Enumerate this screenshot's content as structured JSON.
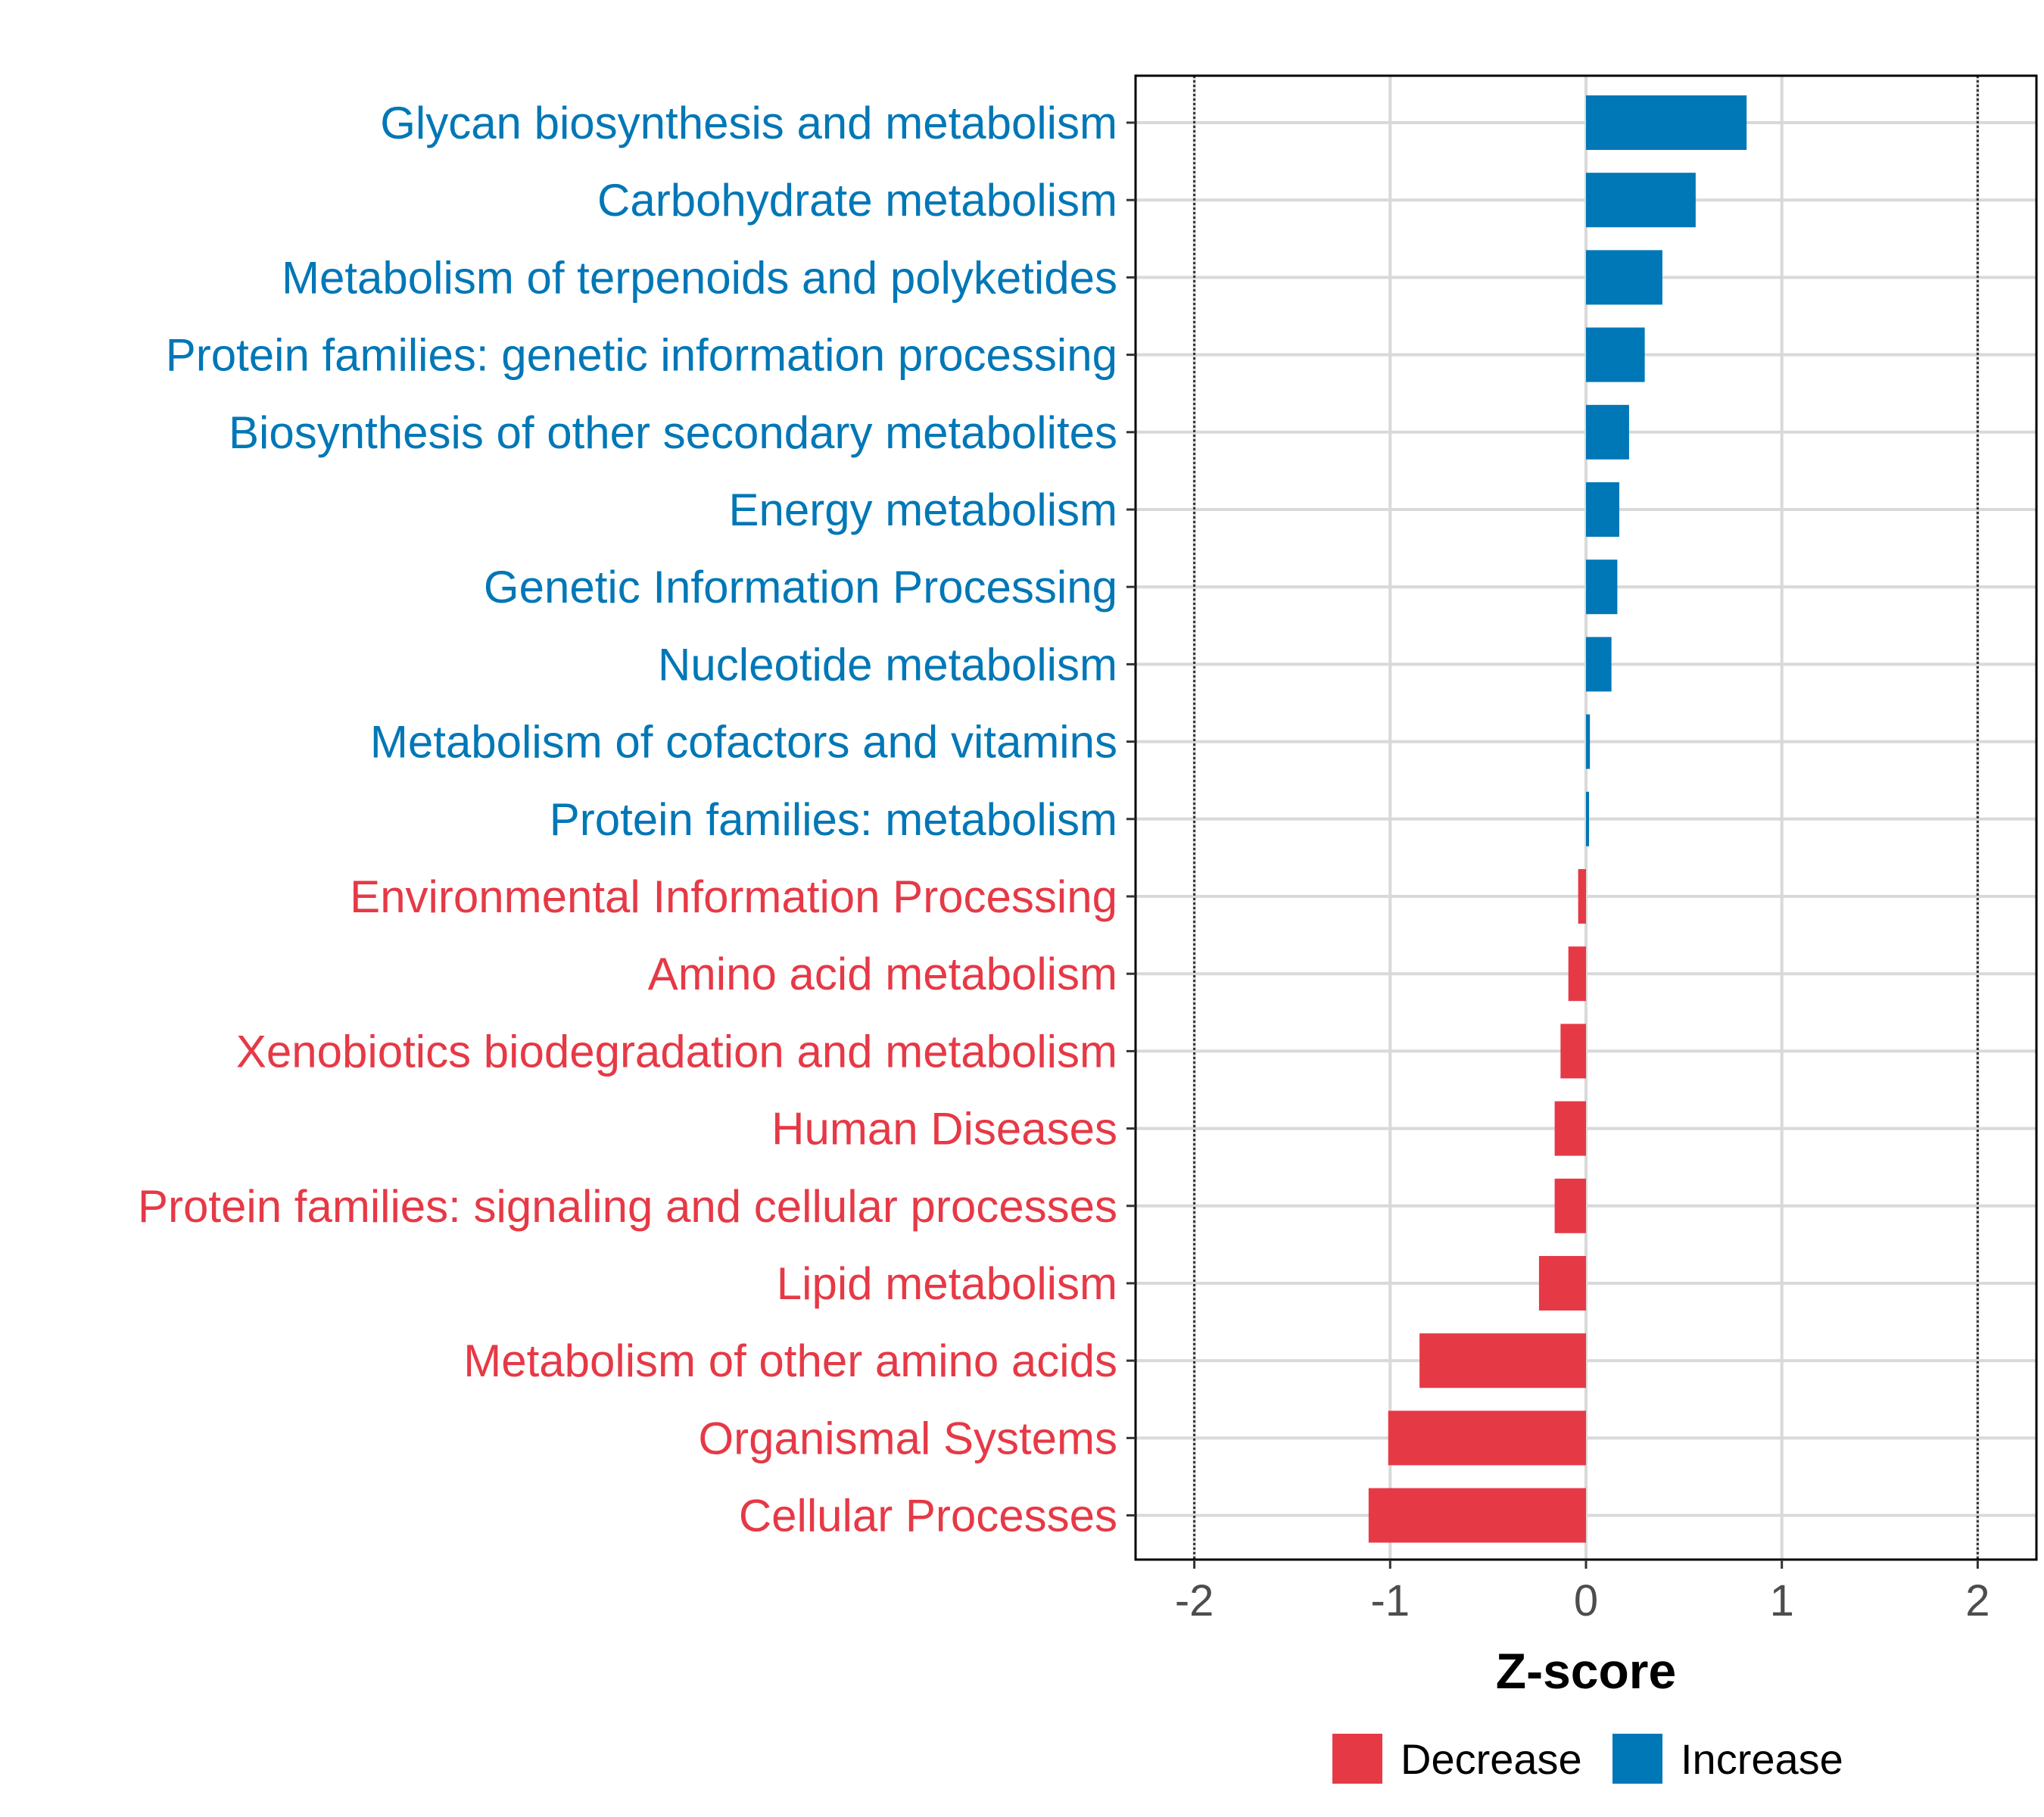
{
  "colors": {
    "increase": "#0077B6",
    "decrease": "#E63946",
    "grid": "#D9D9D9",
    "axis": "#000000"
  },
  "chart_data": {
    "type": "bar",
    "orientation": "horizontal",
    "categories": [
      "Glycan biosynthesis and metabolism",
      "Carbohydrate metabolism",
      "Metabolism of terpenoids and polyketides",
      "Protein families: genetic information processing",
      "Biosynthesis of other secondary metabolites",
      "Energy metabolism",
      "Genetic Information Processing",
      "Nucleotide metabolism",
      "Metabolism of cofactors and vitamins",
      "Protein families: metabolism",
      "Environmental Information Processing",
      "Amino acid metabolism",
      "Xenobiotics biodegradation and metabolism",
      "Human Diseases",
      "Protein families: signaling and cellular processes",
      "Lipid metabolism",
      "Metabolism of other amino acids",
      "Organismal Systems",
      "Cellular Processes"
    ],
    "values": [
      0.82,
      0.56,
      0.39,
      0.3,
      0.22,
      0.17,
      0.16,
      0.13,
      0.02,
      0.01,
      -0.04,
      -0.09,
      -0.13,
      -0.16,
      -0.16,
      -0.24,
      -0.85,
      -1.01,
      -1.11
    ],
    "groups": [
      "Increase",
      "Increase",
      "Increase",
      "Increase",
      "Increase",
      "Increase",
      "Increase",
      "Increase",
      "Increase",
      "Increase",
      "Decrease",
      "Decrease",
      "Decrease",
      "Decrease",
      "Decrease",
      "Decrease",
      "Decrease",
      "Decrease",
      "Decrease"
    ],
    "xlabel": "Z-score",
    "ylabel": "",
    "xlim": [
      -2.3,
      2.3
    ],
    "xticks": [
      -2,
      -1,
      0,
      1,
      2
    ],
    "xtick_labels": [
      "-2",
      "-1",
      "0",
      "1",
      "2"
    ],
    "reference_lines": [
      -2,
      2
    ],
    "grid": true,
    "legend": {
      "position": "bottom",
      "entries": [
        {
          "label": "Decrease",
          "group": "Decrease"
        },
        {
          "label": "Increase",
          "group": "Increase"
        }
      ]
    }
  }
}
